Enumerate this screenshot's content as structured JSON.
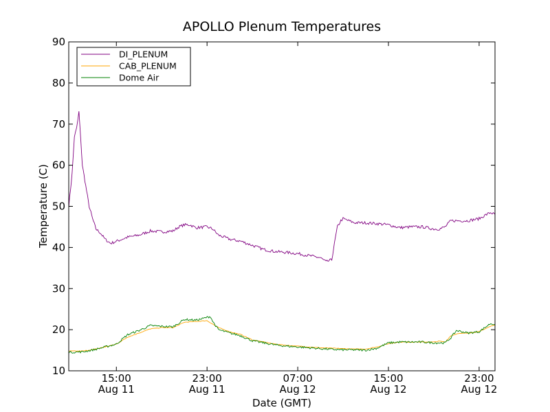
{
  "chart_data": {
    "type": "line",
    "title": "APOLLO Plenum Temperatures",
    "xlabel": "Date (GMT)",
    "ylabel": "Temperature (C)",
    "ylim": [
      10,
      90
    ],
    "yticks": [
      10,
      20,
      30,
      40,
      50,
      60,
      70,
      80,
      90
    ],
    "xlim_hours": [
      10.8,
      48.4
    ],
    "xticks": [
      {
        "hours": 15,
        "time": "15:00",
        "date": "Aug 11"
      },
      {
        "hours": 23,
        "time": "23:00",
        "date": "Aug 11"
      },
      {
        "hours": 31,
        "time": "07:00",
        "date": "Aug 12"
      },
      {
        "hours": 39,
        "time": "15:00",
        "date": "Aug 12"
      },
      {
        "hours": 47,
        "time": "23:00",
        "date": "Aug 12"
      }
    ],
    "x_units": "hours since Aug 11 00:00 GMT",
    "legend_position": "top-left",
    "grid": false,
    "series": [
      {
        "name": "DI_PLENUM",
        "color": "#800080",
        "x": [
          10.8,
          11.1,
          11.3,
          11.5,
          11.7,
          12.0,
          12.3,
          12.6,
          12.9,
          13.2,
          13.6,
          14.0,
          14.5,
          15.0,
          16.0,
          17.0,
          18.0,
          19.0,
          20.0,
          20.5,
          21.0,
          21.5,
          22.0,
          23.0,
          23.5,
          24.0,
          25.0,
          26.0,
          27.0,
          28.0,
          29.0,
          30.0,
          31.0,
          32.0,
          33.0,
          33.5,
          34.0,
          34.3,
          34.5,
          34.8,
          35.0,
          35.5,
          36.0,
          37.0,
          38.0,
          39.0,
          40.0,
          41.0,
          42.0,
          43.0,
          43.5,
          44.0,
          44.5,
          45.0,
          46.0,
          47.0,
          47.5,
          48.0,
          48.4
        ],
        "y": [
          50,
          58,
          67,
          69,
          73,
          60,
          55,
          50,
          47,
          44.5,
          43.5,
          42,
          41,
          41.5,
          42.5,
          43,
          44,
          43.8,
          44,
          45,
          45.5,
          45.5,
          44.8,
          45,
          44.5,
          43,
          42,
          41.5,
          40.5,
          39.5,
          39,
          38.8,
          38.5,
          38,
          37.5,
          36.5,
          37,
          42,
          45,
          46.5,
          47,
          46.5,
          46,
          46,
          45.8,
          45.5,
          44.8,
          45,
          45,
          44.5,
          44.5,
          45,
          46.5,
          46.5,
          46.5,
          47,
          47.8,
          48.5,
          48
        ],
        "noise": 0.35
      },
      {
        "name": "CAB_PLENUM",
        "color": "#ffa500",
        "x": [
          10.8,
          12.0,
          13.0,
          14.0,
          15.0,
          16.0,
          17.0,
          18.0,
          19.0,
          20.0,
          21.0,
          22.0,
          23.0,
          24.0,
          25.0,
          26.0,
          27.0,
          28.0,
          29.0,
          30.0,
          31.0,
          32.0,
          33.0,
          34.0,
          35.0,
          36.0,
          37.0,
          38.0,
          39.0,
          40.0,
          41.0,
          42.0,
          43.0,
          43.5,
          44.0,
          44.5,
          45.0,
          46.0,
          47.0,
          47.5,
          48.0,
          48.4
        ],
        "y": [
          14.8,
          14.8,
          15.2,
          15.8,
          16.5,
          18.2,
          19.2,
          20.2,
          20.5,
          20.5,
          21.8,
          22,
          22.2,
          20.5,
          19.5,
          18.8,
          17.5,
          17,
          16.5,
          16.2,
          16,
          15.8,
          15.6,
          15.5,
          15.4,
          15.3,
          15.3,
          15.8,
          16.6,
          17,
          17,
          17,
          17,
          17.2,
          17,
          18.5,
          19,
          19.2,
          19.5,
          20.2,
          20.8,
          21.2
        ],
        "noise": 0.08
      },
      {
        "name": "Dome Air",
        "color": "#008000",
        "x": [
          10.8,
          12.0,
          13.0,
          14.0,
          15.0,
          16.0,
          17.0,
          18.0,
          19.0,
          20.0,
          21.0,
          22.0,
          22.5,
          23.0,
          23.3,
          23.5,
          24.0,
          25.0,
          26.0,
          27.0,
          28.0,
          29.0,
          30.0,
          31.0,
          32.0,
          33.0,
          34.0,
          35.0,
          36.0,
          37.0,
          38.0,
          39.0,
          40.0,
          41.0,
          42.0,
          43.0,
          43.5,
          44.0,
          44.5,
          45.0,
          46.0,
          47.0,
          47.5,
          48.0,
          48.4
        ],
        "y": [
          14.5,
          14.6,
          15.1,
          15.8,
          16.5,
          18.8,
          19.8,
          21,
          20.8,
          20.7,
          22.5,
          22.3,
          22.6,
          23,
          23.2,
          22,
          20,
          19.2,
          18.5,
          17.3,
          16.8,
          16.3,
          16,
          15.8,
          15.6,
          15.4,
          15.2,
          15.1,
          15.1,
          15,
          15.5,
          16.8,
          17,
          17,
          17,
          16.8,
          16.8,
          16.8,
          18,
          19.8,
          19.2,
          19.5,
          20.5,
          21.5,
          21.3
        ],
        "noise": 0.25
      }
    ]
  }
}
